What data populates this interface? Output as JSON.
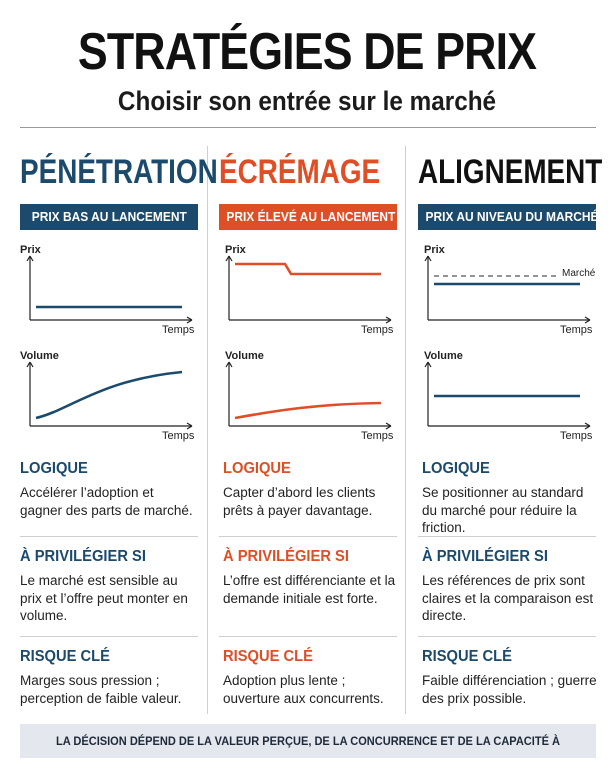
{
  "header": {
    "title": "STRATÉGIES DE PRIX",
    "subtitle": "Choisir son entrée sur le marché"
  },
  "colors": {
    "navy": "#1b4a6d",
    "orange": "#e04e25",
    "dark": "#111111"
  },
  "columns": [
    {
      "title": "PÉNÉTRATION",
      "banner": "PRIX BAS AU LANCEMENT",
      "price_chart": {
        "ylabel": "Prix",
        "xlabel": "Temps",
        "shape": "flat-low"
      },
      "volume_chart": {
        "ylabel": "Volume",
        "xlabel": "Temps",
        "shape": "steep-rise"
      },
      "logic_heading": "LOGIQUE",
      "logic_text": "Accélérer l’adoption et gagner des parts de marché.",
      "favor_heading": "À PRIVILÉGIER SI",
      "favor_text": "Le marché est sensible au prix et l’offre peut monter en volume.",
      "risk_heading": "RISQUE CLÉ",
      "risk_text": "Marges sous pression ; perception de faible valeur."
    },
    {
      "title": "ÉCRÉMAGE",
      "banner": "PRIX ÉLEVÉ AU LANCEMENT",
      "price_chart": {
        "ylabel": "Prix",
        "xlabel": "Temps",
        "shape": "high-then-step-down"
      },
      "volume_chart": {
        "ylabel": "Volume",
        "xlabel": "Temps",
        "shape": "gentle-rise"
      },
      "logic_heading": "LOGIQUE",
      "logic_text": "Capter d’abord les clients prêts à payer davantage.",
      "favor_heading": "À PRIVILÉGIER SI",
      "favor_text": "L’offre est différenciante et la demande initiale est forte.",
      "risk_heading": "RISQUE CLÉ",
      "risk_text": "Adoption plus lente ; ouverture aux concurrents."
    },
    {
      "title": "ALIGNEMENT",
      "banner": "PRIX AU NIVEAU DU MARCHÉ",
      "price_chart": {
        "ylabel": "Prix",
        "xlabel": "Temps",
        "shape": "flat-at-market",
        "reference_label": "Marché"
      },
      "volume_chart": {
        "ylabel": "Volume",
        "xlabel": "Temps",
        "shape": "flat"
      },
      "logic_heading": "LOGIQUE",
      "logic_text": "Se positionner au standard du marché pour réduire la friction.",
      "favor_heading": "À PRIVILÉGIER SI",
      "favor_text": "Les références de prix sont claires et la comparaison est directe.",
      "risk_heading": "RISQUE CLÉ",
      "risk_text": "Faible différenciation ; guerre des prix possible."
    }
  ],
  "footer": "LA DÉCISION DÉPEND DE LA VALEUR PERÇUE, DE LA CONCURRENCE ET DE LA CAPACITÉ À LIVRER."
}
